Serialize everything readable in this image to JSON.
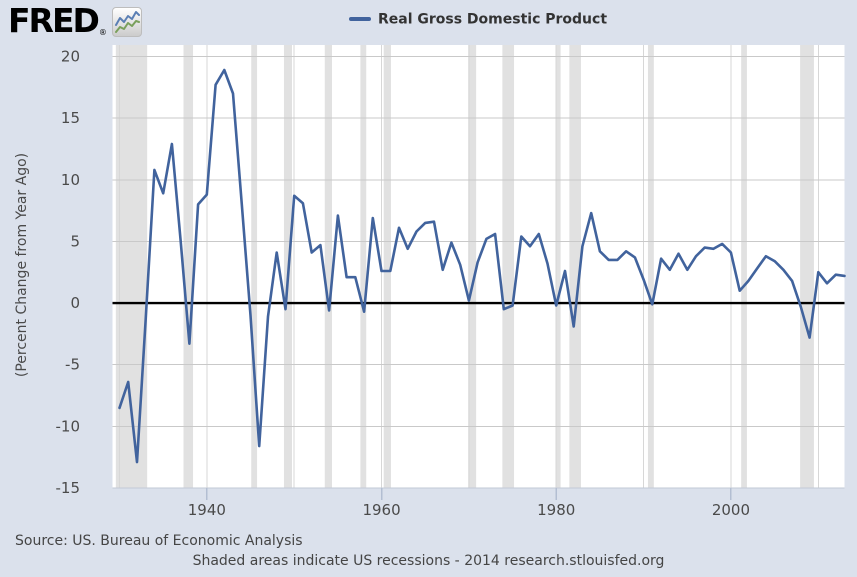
{
  "header": {
    "logo_text": "FRED",
    "logo_reg": "®",
    "logo_icon": "sparkline-chart-icon"
  },
  "legend": {
    "label": "Real Gross Domestic Product"
  },
  "footer": {
    "source_line": "Source: US. Bureau of Economic Analysis",
    "note_line": "Shaded areas indicate US recessions - 2014 research.stlouisfed.org"
  },
  "colors": {
    "background": "#dbe1ec",
    "plot_background": "#ffffff",
    "line": "#41639d",
    "recession_band": "#e1e1e1",
    "grid_horizontal": "#c9c9c9",
    "grid_vertical": "#d7d7d7",
    "zero_line": "#000000",
    "tick_label": "#4a4a4a",
    "axis_tick": "#b3bed2",
    "axis_edge": "#c2c9d6",
    "logo_blue": "#5b7fb4",
    "logo_green": "#7aa05c"
  },
  "chart_data": {
    "type": "line",
    "title": "Real Gross Domestic Product",
    "xlabel": "",
    "ylabel": "(Percent Change from Year Ago)",
    "legend_position": "top-center",
    "grid": {
      "horizontal": true,
      "vertical_decades": [
        1930,
        1940,
        1950,
        1960,
        1970,
        1980,
        1990,
        2000,
        2010
      ]
    },
    "zero_line": true,
    "xlim": [
      1929.2,
      2013
    ],
    "ylim": [
      -15,
      20.93
    ],
    "xticks": [
      1940,
      1960,
      1980,
      2000
    ],
    "yticks": [
      20,
      15,
      10,
      5,
      0,
      -5,
      -10,
      -15
    ],
    "recession_bands_years": [
      [
        1929.58,
        1933.17
      ],
      [
        1937.33,
        1938.42
      ],
      [
        1945.08,
        1945.75
      ],
      [
        1948.83,
        1949.75
      ],
      [
        1953.5,
        1954.33
      ],
      [
        1957.58,
        1958.25
      ],
      [
        1960.25,
        1961.08
      ],
      [
        1969.92,
        1970.83
      ],
      [
        1973.83,
        1975.17
      ],
      [
        1980.0,
        1980.5
      ],
      [
        1981.5,
        1982.83
      ],
      [
        1990.5,
        1991.17
      ],
      [
        2001.17,
        2001.83
      ],
      [
        2007.92,
        2009.5
      ]
    ],
    "series": [
      {
        "name": "Real Gross Domestic Product",
        "units": "Percent Change from Year Ago",
        "start_year": 1930,
        "step_years": 1,
        "values": [
          -8.5,
          -6.4,
          -12.9,
          -1.3,
          10.8,
          8.9,
          12.9,
          5.1,
          -3.3,
          8.0,
          8.8,
          17.7,
          18.9,
          17.0,
          8.0,
          -1.0,
          -11.6,
          -1.1,
          4.1,
          -0.5,
          8.7,
          8.1,
          4.1,
          4.7,
          -0.6,
          7.1,
          2.1,
          2.1,
          -0.7,
          6.9,
          2.6,
          2.6,
          6.1,
          4.4,
          5.8,
          6.5,
          6.6,
          2.7,
          4.9,
          3.1,
          0.2,
          3.3,
          5.2,
          5.6,
          -0.5,
          -0.2,
          5.4,
          4.6,
          5.6,
          3.2,
          -0.2,
          2.6,
          -1.9,
          4.6,
          7.3,
          4.2,
          3.5,
          3.5,
          4.2,
          3.7,
          1.9,
          -0.1,
          3.6,
          2.7,
          4.0,
          2.7,
          3.8,
          4.5,
          4.4,
          4.8,
          4.1,
          1.0,
          1.8,
          2.8,
          3.8,
          3.4,
          2.7,
          1.8,
          -0.3,
          -2.8,
          2.5,
          1.6,
          2.3,
          2.2
        ]
      }
    ]
  }
}
